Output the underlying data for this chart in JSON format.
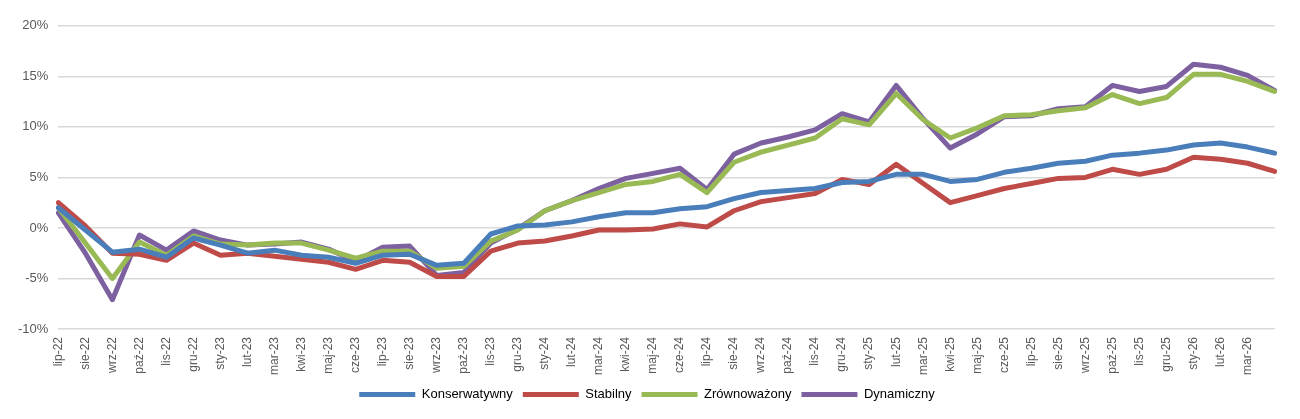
{
  "chart_data": {
    "type": "line",
    "categories": [
      "lip-22",
      "sie-22",
      "wrz-22",
      "paź-22",
      "lis-22",
      "gru-22",
      "sty-23",
      "lut-23",
      "mar-23",
      "kwi-23",
      "maj-23",
      "cze-23",
      "lip-23",
      "sie-23",
      "wrz-23",
      "paź-23",
      "lis-23",
      "gru-23",
      "sty-24",
      "lut-24",
      "mar-24",
      "kwi-24",
      "maj-24",
      "cze-24",
      "lip-24",
      "sie-24",
      "wrz-24",
      "paź-24",
      "lis-24",
      "gru-24",
      "sty-25",
      "lut-25",
      "mar-25",
      "kwi-25",
      "maj-25",
      "cze-25",
      "lip-25",
      "sie-25",
      "wrz-25",
      "paź-25",
      "lis-25",
      "gru-25",
      "sty-26",
      "lut-26",
      "mar-26",
      null
    ],
    "series": [
      {
        "name": "Konserwatywny",
        "color": "#4a7ebb",
        "values": [
          2.0,
          -0.2,
          -2.4,
          -2.1,
          -2.9,
          -1.0,
          -1.7,
          -2.5,
          -2.2,
          -2.7,
          -2.9,
          -3.5,
          -2.7,
          -2.6,
          -3.7,
          -3.5,
          -0.6,
          0.2,
          0.3,
          0.6,
          1.1,
          1.5,
          1.5,
          1.9,
          2.1,
          2.9,
          3.5,
          3.7,
          3.9,
          4.5,
          4.6,
          5.3,
          5.3,
          4.6,
          4.8,
          5.5,
          5.9,
          6.4,
          6.6,
          7.2,
          7.4,
          7.7,
          8.2,
          8.4,
          8.0,
          7.4
        ]
      },
      {
        "name": "Stabilny",
        "color": "#be4b48",
        "values": [
          2.5,
          0.2,
          -2.5,
          -2.6,
          -3.2,
          -1.5,
          -2.7,
          -2.5,
          -2.8,
          -3.1,
          -3.4,
          -4.1,
          -3.2,
          -3.4,
          -4.8,
          -4.8,
          -2.3,
          -1.5,
          -1.3,
          -0.8,
          -0.2,
          -0.2,
          -0.1,
          0.4,
          0.1,
          1.7,
          2.6,
          3.0,
          3.4,
          4.8,
          4.3,
          6.3,
          4.4,
          2.5,
          3.2,
          3.9,
          4.4,
          4.9,
          5.0,
          5.8,
          5.3,
          5.8,
          7.0,
          6.8,
          6.4,
          5.6
        ]
      },
      {
        "name": "Zrównoważony",
        "color": "#98b954",
        "values": [
          2.0,
          -1.5,
          -5.0,
          -1.4,
          -2.7,
          -0.8,
          -1.6,
          -1.7,
          -1.5,
          -1.5,
          -2.2,
          -3.0,
          -2.3,
          -2.3,
          -4.0,
          -3.8,
          -1.3,
          -0.2,
          1.7,
          2.7,
          3.5,
          4.3,
          4.6,
          5.3,
          3.5,
          6.5,
          7.5,
          8.2,
          8.9,
          10.8,
          10.2,
          13.3,
          10.7,
          8.9,
          9.9,
          11.1,
          11.2,
          11.6,
          11.9,
          13.2,
          12.3,
          12.9,
          15.2,
          15.2,
          14.5,
          13.5
        ]
      },
      {
        "name": "Dynamiczny",
        "color": "#7d60a0",
        "values": [
          1.5,
          -2.5,
          -7.1,
          -0.7,
          -2.2,
          -0.3,
          -1.2,
          -1.7,
          -1.6,
          -1.4,
          -2.1,
          -3.3,
          -1.9,
          -1.8,
          -4.7,
          -4.4,
          -1.5,
          -0.1,
          1.7,
          2.7,
          3.9,
          4.9,
          5.4,
          5.9,
          3.8,
          7.3,
          8.4,
          9.0,
          9.7,
          11.3,
          10.5,
          14.1,
          10.8,
          7.9,
          9.3,
          11.0,
          11.1,
          11.8,
          12.0,
          14.1,
          13.5,
          14.0,
          16.2,
          15.9,
          15.1,
          13.6
        ]
      }
    ],
    "ylim": [
      -10,
      20
    ],
    "yticks": [
      {
        "value": -10,
        "label": "-10%"
      },
      {
        "value": -5,
        "label": "-5%"
      },
      {
        "value": 0,
        "label": "0%"
      },
      {
        "value": 5,
        "label": "5%"
      },
      {
        "value": 10,
        "label": "10%"
      },
      {
        "value": 15,
        "label": "15%"
      },
      {
        "value": 20,
        "label": "20%"
      }
    ],
    "grid": "y",
    "legend": "bottom",
    "marker": "none",
    "line_style": "solid"
  }
}
